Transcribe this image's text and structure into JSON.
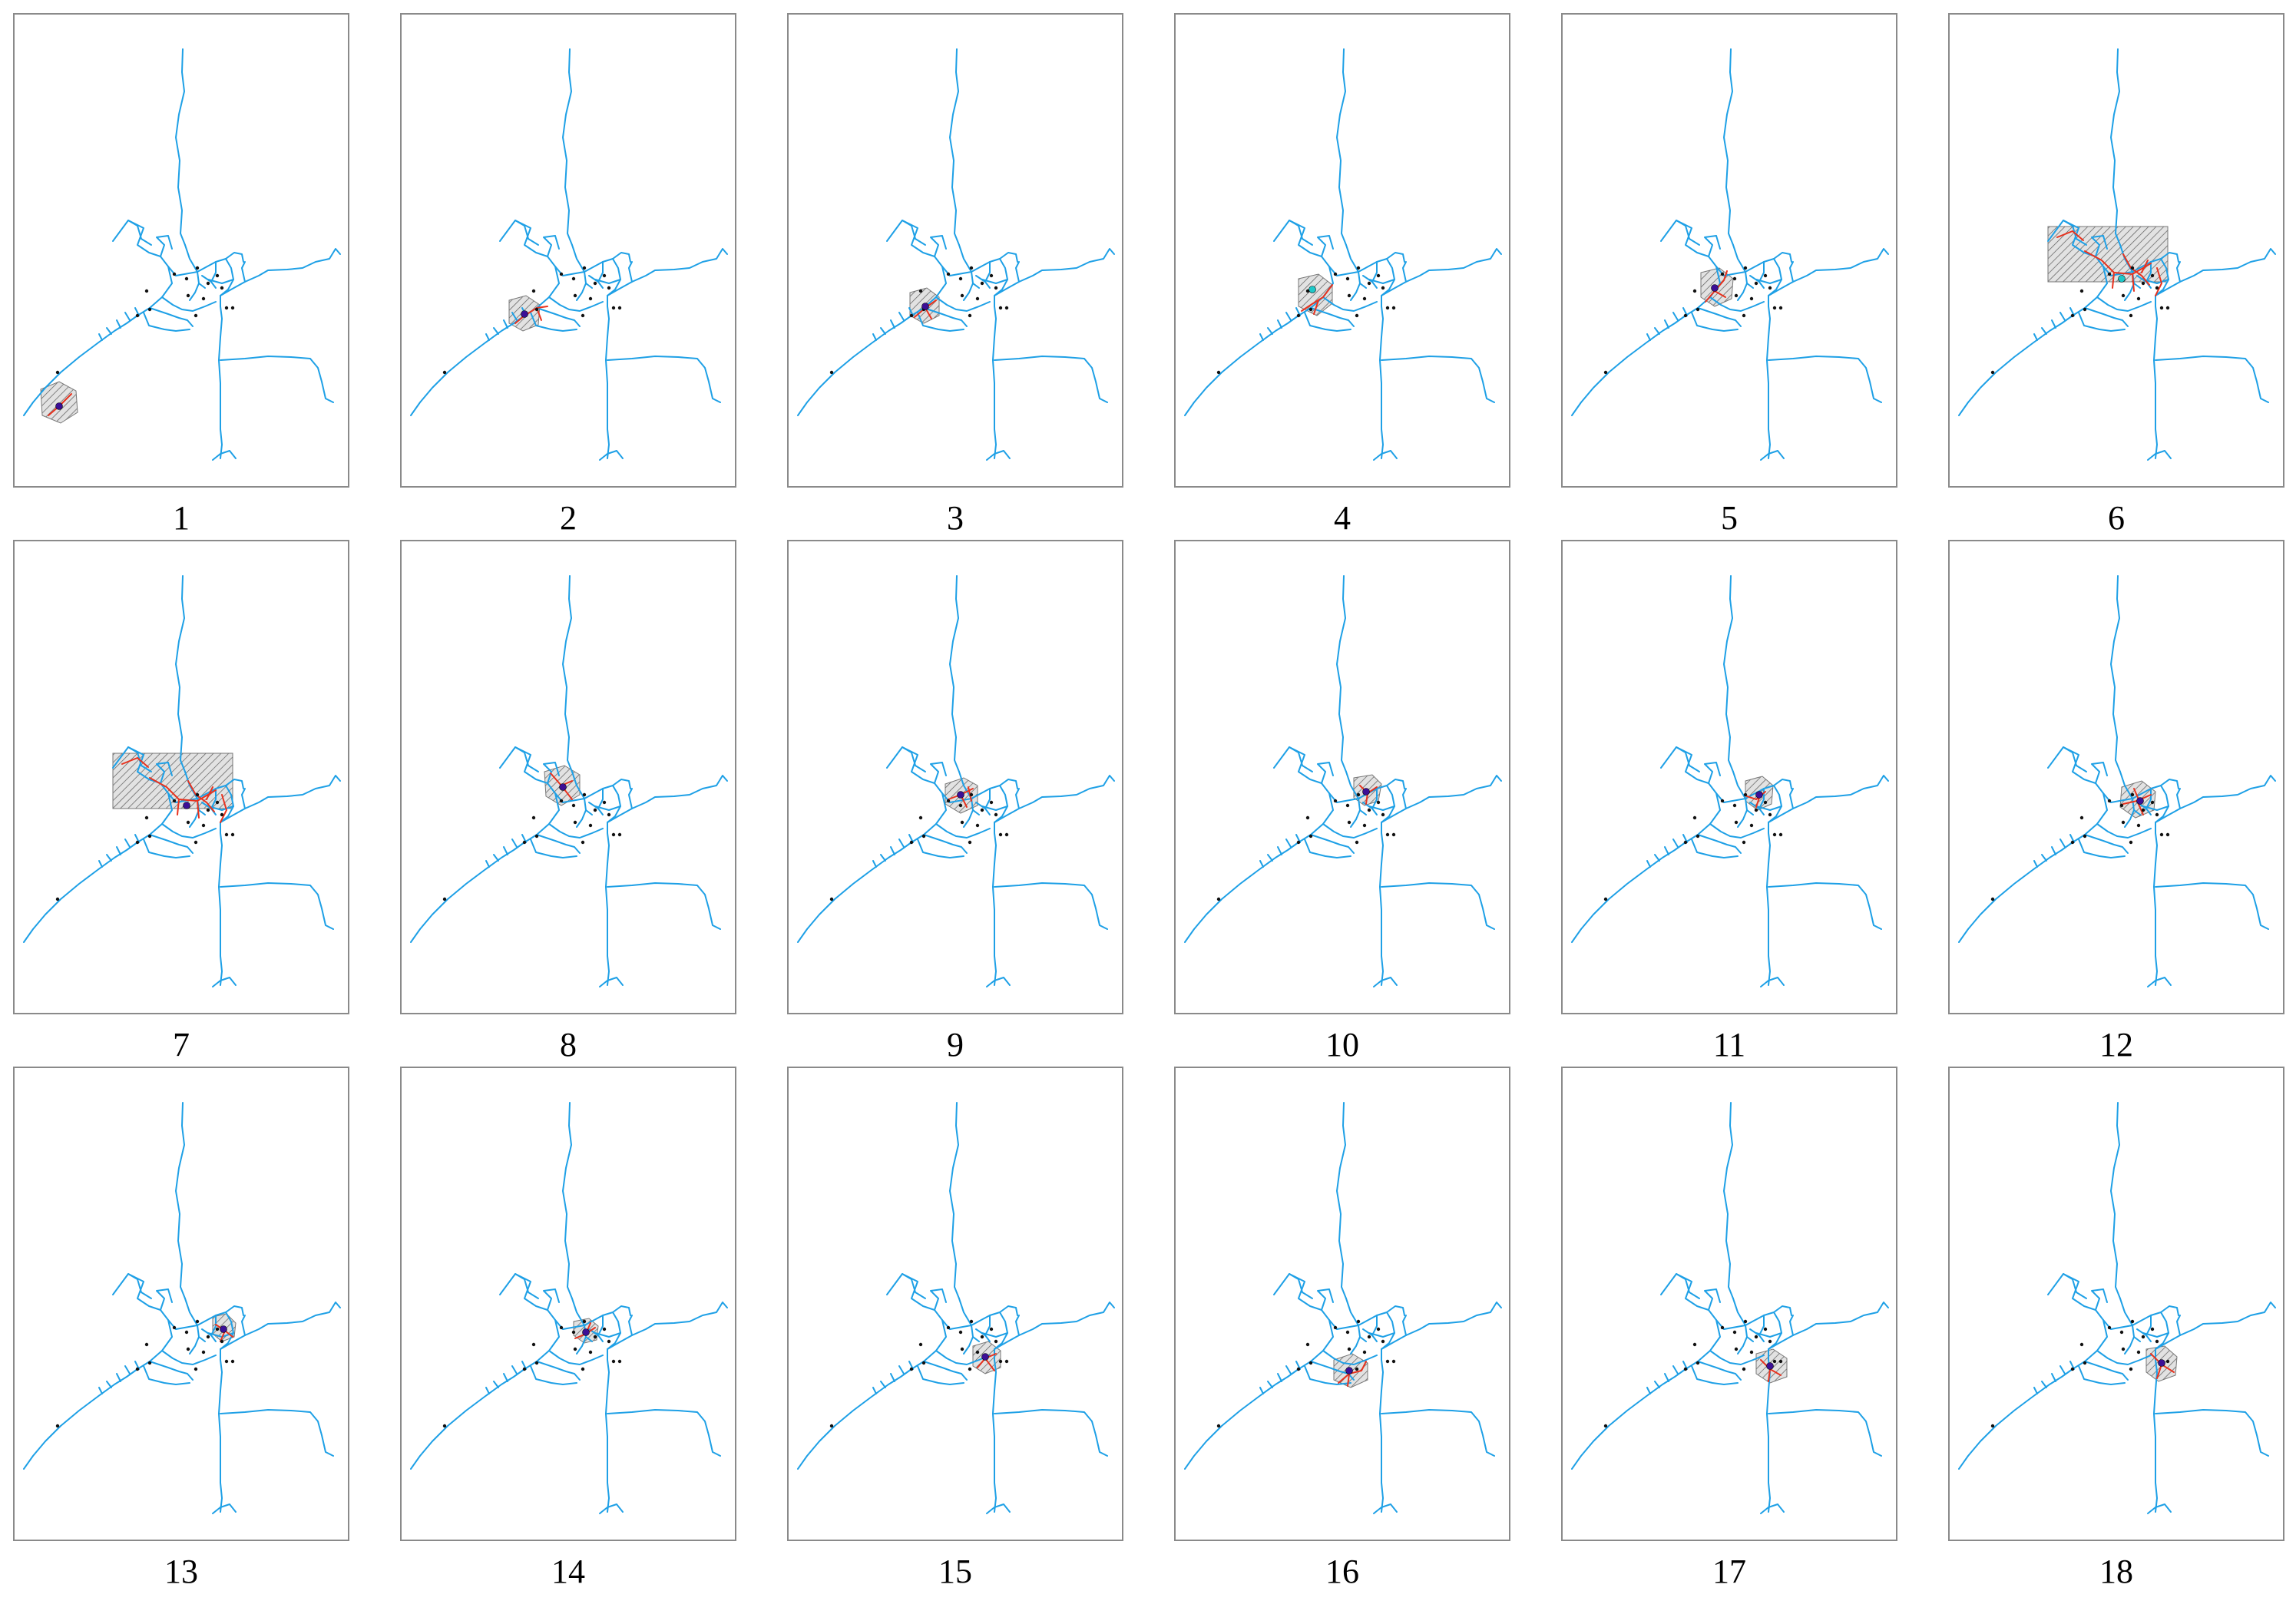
{
  "figure": {
    "colors": {
      "road": "#1ea0e6",
      "highlight_road": "#e8321e",
      "buffer_hatch": "#555555",
      "buffer_fill": "#dcdcdc",
      "center_point": "#3c0f96",
      "center_point_alt": "#1ec8c8",
      "poi": "#111111",
      "frame": "#8a8a8a"
    },
    "panels": [
      {
        "label": "1",
        "center": "sw-end",
        "buffer": "hexagon",
        "center_color": "center_point"
      },
      {
        "label": "2",
        "center": "west-arm",
        "buffer": "hexagon",
        "center_color": "center_point"
      },
      {
        "label": "3",
        "center": "west-mid",
        "buffer": "hexagon",
        "center_color": "center_point"
      },
      {
        "label": "4",
        "center": "west-inner",
        "buffer": "hexagon",
        "center_color": "center_point_alt"
      },
      {
        "label": "5",
        "center": "core-west",
        "buffer": "hexagon",
        "center_color": "center_point"
      },
      {
        "label": "6",
        "center": "core",
        "buffer": "rectangle",
        "center_color": "center_point_alt"
      },
      {
        "label": "7",
        "center": "core",
        "buffer": "rectangle",
        "center_color": "center_point"
      },
      {
        "label": "8",
        "center": "north-west",
        "buffer": "hexagon",
        "center_color": "center_point"
      },
      {
        "label": "9",
        "center": "core-north",
        "buffer": "hexagon",
        "center_color": "center_point"
      },
      {
        "label": "10",
        "center": "north",
        "buffer": "hexagon",
        "center_color": "center_point"
      },
      {
        "label": "11",
        "center": "north-east",
        "buffer": "hexagon",
        "center_color": "center_point"
      },
      {
        "label": "12",
        "center": "east",
        "buffer": "hexagon",
        "center_color": "center_point"
      },
      {
        "label": "13",
        "center": "east-inner",
        "buffer": "hexagon",
        "center_color": "center_point"
      },
      {
        "label": "14",
        "center": "east-mid",
        "buffer": "hexagon",
        "center_color": "center_point"
      },
      {
        "label": "15",
        "center": "south-east",
        "buffer": "hexagon",
        "center_color": "center_point"
      },
      {
        "label": "16",
        "center": "south",
        "buffer": "hexagon",
        "center_color": "center_point"
      },
      {
        "label": "17",
        "center": "south-east2",
        "buffer": "hexagon",
        "center_color": "center_point"
      },
      {
        "label": "18",
        "center": "east-south",
        "buffer": "hexagon",
        "center_color": "center_point"
      }
    ]
  }
}
